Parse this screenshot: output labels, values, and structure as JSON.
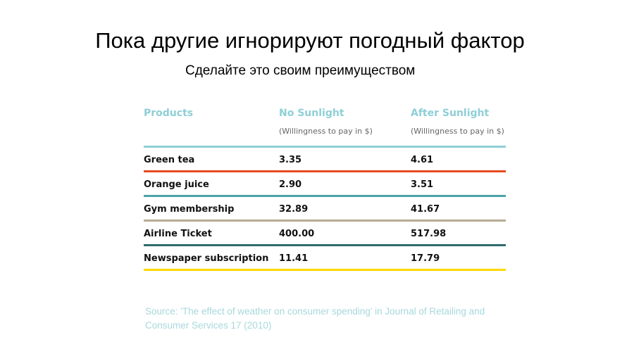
{
  "slide": {
    "title": "Пока другие игнорируют погодный фактор",
    "subtitle": "Сделайте это своим преимуществом"
  },
  "table": {
    "headers": [
      "Products",
      "No Sunlight",
      "After Sunlight"
    ],
    "subheaders": [
      "",
      "(Willingness to pay in $)",
      "(Willingness to pay in $)"
    ],
    "header_color": "#8ecfd6",
    "rows": [
      {
        "product": "Green tea",
        "no_sunlight": "3.35",
        "after_sunlight": "4.61",
        "line_color": "#e84a1f"
      },
      {
        "product": "Orange juice",
        "no_sunlight": "2.90",
        "after_sunlight": "3.51",
        "line_color": "#4aa3a8"
      },
      {
        "product": "Gym membership",
        "no_sunlight": "32.89",
        "after_sunlight": "41.67",
        "line_color": "#b8ab93"
      },
      {
        "product": "Airline Ticket",
        "no_sunlight": "400.00",
        "after_sunlight": "517.98",
        "line_color": "#2e6a6e"
      },
      {
        "product": "Newspaper subscription",
        "no_sunlight": "11.41",
        "after_sunlight": "17.79",
        "line_color": "#ffd800"
      }
    ]
  },
  "source": "Source: 'The effect of weather on consumer spending' in Journal of Retailing and Consumer Services 17 (2010)"
}
